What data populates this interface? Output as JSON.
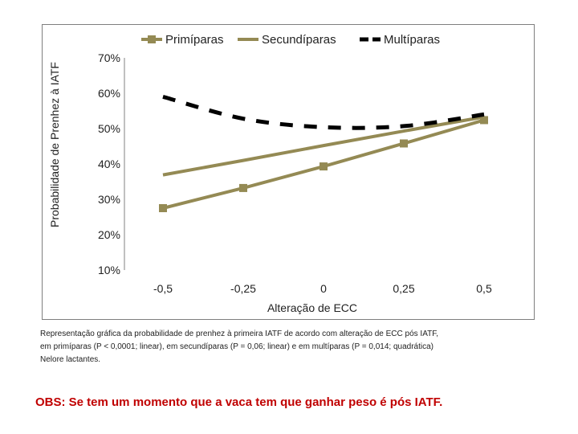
{
  "chart_data": {
    "type": "line",
    "x": [
      -0.5,
      -0.25,
      0,
      0.25,
      0.5
    ],
    "x_tick_labels": [
      "-0,5",
      "-0,25",
      "0",
      "0,25",
      "0,5"
    ],
    "y_tick_labels": [
      "10%",
      "20%",
      "30%",
      "40%",
      "50%",
      "60%",
      "70%"
    ],
    "y_ticks": [
      10,
      20,
      30,
      40,
      50,
      60,
      70
    ],
    "ylim": [
      10,
      70
    ],
    "xlim": [
      -0.5,
      0.5
    ],
    "xlabel": "Alteração de ECC",
    "ylabel": "Probabilidade de Prenhez à IATF",
    "legend_position": "top",
    "series": [
      {
        "name": "Primíparas",
        "values": [
          27.5,
          33.2,
          39.3,
          45.8,
          52.4
        ],
        "color": "#948a54",
        "style": "solid-markers"
      },
      {
        "name": "Secundíparas",
        "values": [
          36.9,
          41.0,
          45.2,
          49.3,
          53.3
        ],
        "color": "#948a54",
        "style": "solid"
      },
      {
        "name": "Multíparas",
        "values": [
          59.0,
          52.8,
          50.4,
          50.7,
          54.0
        ],
        "color": "#000000",
        "style": "dashed"
      }
    ]
  },
  "caption": {
    "line1": "Representação gráfica da probabilidade de prenhez à primeira IATF de acordo com alteração de ECC pós IATF,",
    "line2": "em primíparas (P < 0,0001; linear), em secundíparas (P = 0,06; linear) e em multíparas (P = 0,014; quadrática)",
    "line3": "Nelore lactantes."
  },
  "obs": "OBS: Se tem um momento que a vaca tem que ganhar peso é pós IATF."
}
